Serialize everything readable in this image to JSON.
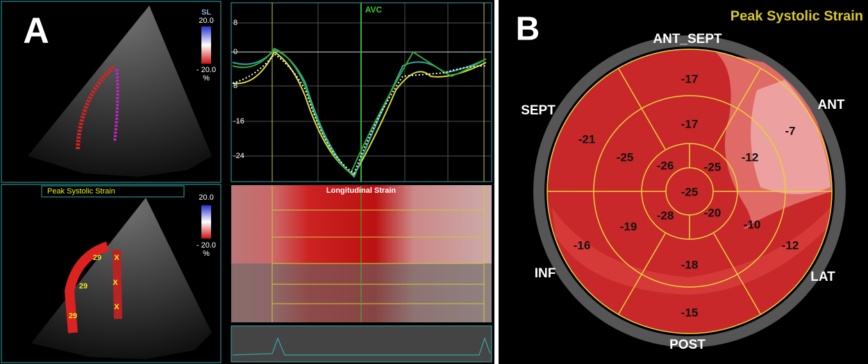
{
  "panel_a": {
    "label": "A",
    "top_image": {
      "scale_title": "SL",
      "scale_max": "20.0",
      "scale_min": "- 20.0",
      "unit": "%"
    },
    "bottom_image": {
      "banner": "Peak Systolic Strain",
      "scale_max": "20.0",
      "scale_min": "- 20.0",
      "unit": "%",
      "segment_marks": [
        "29",
        "29",
        "29",
        "X",
        "X",
        "X"
      ]
    },
    "graph": {
      "event": "AVC",
      "y_labels": [
        "8",
        "0",
        "8",
        "-16",
        "-24"
      ]
    },
    "strain_map": {
      "title": "Longitudinal Strain"
    }
  },
  "panel_b": {
    "label": "B",
    "title": "Peak Systolic Strain",
    "walls": [
      "ANT_SEPT",
      "ANT",
      "LAT",
      "POST",
      "INF",
      "SEPT"
    ],
    "basal": [
      "-17",
      "-7",
      "-12",
      "-15",
      "-16",
      "-21"
    ],
    "mid": [
      "-17",
      "-12",
      "-10",
      "-18",
      "-19",
      "-25"
    ],
    "apical": [
      "-26",
      "-25",
      "-20",
      "-28"
    ],
    "apex": "-25"
  }
}
